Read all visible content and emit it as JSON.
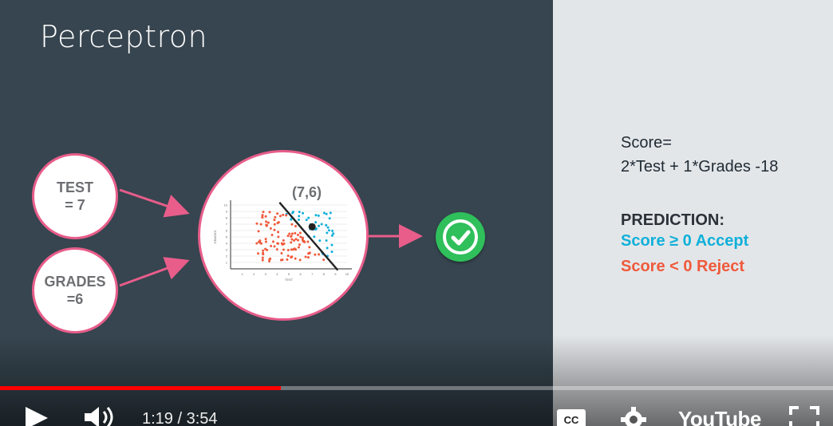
{
  "slide": {
    "title": "Perceptron",
    "inputs": [
      {
        "label": "TEST\n= 7"
      },
      {
        "label": "GRADES\n=6"
      }
    ],
    "point_label": "(7,6)",
    "formula_line1": "Score=",
    "formula_line2": "2*Test + 1*Grades -18",
    "prediction_title": "PREDICTION:",
    "accept_rule": "Score ≥ 0 Accept",
    "reject_rule": "Score < 0 Reject",
    "colors": {
      "pink": "#e85d8a",
      "blue": "#0fb0d9",
      "red": "#ef5a3b",
      "green": "#2fbf5b"
    }
  },
  "scatter": {
    "xlabel": "TEST",
    "ylabel": "GRADES",
    "xticks": [
      "1",
      "2",
      "3",
      "4",
      "5",
      "6",
      "7",
      "8",
      "9",
      "10"
    ],
    "yticks": [
      "1",
      "2",
      "3",
      "4",
      "5",
      "6",
      "7",
      "8",
      "9",
      "10"
    ]
  },
  "player": {
    "current_time": "1:19",
    "duration": "3:54",
    "time_display": "1:19 / 3:54",
    "progress_fraction": 0.337,
    "logo_text": "YouTube",
    "cc_label": "CC",
    "icons": [
      "play-icon",
      "volume-icon",
      "captions-icon",
      "settings-icon",
      "fullscreen-icon"
    ]
  }
}
